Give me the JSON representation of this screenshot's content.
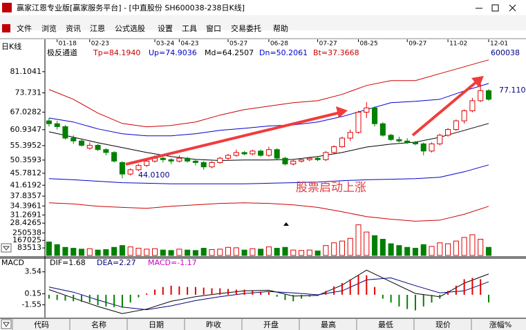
{
  "window": {
    "title": "赢家江恩专业版[赢家服务平台] - [中直股份  SH600038-238日K线]",
    "menu": [
      "文件",
      "浏览",
      "资讯",
      "江恩",
      "公式选股",
      "设置",
      "工具",
      "窗口",
      "交易委托",
      "帮助"
    ]
  },
  "chart_panel": {
    "period_label": "日K线",
    "indicator_name": "极反通道",
    "code": "600038",
    "annotation": "股票启动上涨"
  },
  "chart_data": [
    {
      "type": "candlestick",
      "up_color": "#e00000",
      "down_color": "#008000",
      "xlim": [
        -0.5,
        58.5
      ],
      "xticks": [
        {
          "value": 1,
          "label": "01-18"
        },
        {
          "value": 5,
          "label": "02-23"
        },
        {
          "value": 13,
          "label": "03-24"
        },
        {
          "value": 16,
          "label": "04-23"
        },
        {
          "value": 22,
          "label": "05-27"
        },
        {
          "value": 27,
          "label": "06-28"
        },
        {
          "value": 33,
          "label": "07-27"
        },
        {
          "value": 38,
          "label": "08-25"
        },
        {
          "value": 44,
          "label": "09-27"
        },
        {
          "value": 49,
          "label": "11-02"
        },
        {
          "value": 54,
          "label": "12-01"
        }
      ],
      "ylim": [
        28.0,
        89.7
      ],
      "yticks": [
        28.4265,
        31.2691,
        34.3961,
        37.8357,
        41.6192,
        45.7812,
        50.3593,
        55.3952,
        60.9347,
        67.0282,
        73.731,
        81.1041
      ],
      "candles": [
        [
          64,
          65,
          62,
          63
        ],
        [
          63,
          64,
          61,
          62
        ],
        [
          62,
          62.5,
          57.5,
          58
        ],
        [
          58,
          59,
          56,
          57
        ],
        [
          57,
          57.5,
          55,
          55.5
        ],
        [
          54.5,
          56.5,
          54,
          55.5
        ],
        [
          55.5,
          56,
          53.5,
          54
        ],
        [
          54,
          54.5,
          52,
          53
        ],
        [
          53,
          53.5,
          49.5,
          50
        ],
        [
          49.5,
          50,
          44.01,
          45.5
        ],
        [
          45.5,
          47.5,
          45,
          47
        ],
        [
          47,
          49,
          46.5,
          48.5
        ],
        [
          48.5,
          50.5,
          48,
          50
        ],
        [
          50,
          52,
          49.5,
          51
        ],
        [
          51,
          51.5,
          49.5,
          50.5
        ],
        [
          50.5,
          51,
          49,
          50
        ],
        [
          50,
          52,
          49.5,
          51
        ],
        [
          51,
          51.5,
          49.5,
          50
        ],
        [
          50,
          50.5,
          48.5,
          49.5
        ],
        [
          49.5,
          50,
          47,
          48
        ],
        [
          48,
          50,
          47.5,
          49.5
        ],
        [
          49.5,
          51.5,
          49,
          51
        ],
        [
          51,
          52.5,
          50.5,
          52
        ],
        [
          52,
          54,
          51.5,
          53
        ],
        [
          53,
          53.5,
          52,
          52.5
        ],
        [
          52.5,
          54,
          52,
          53.5
        ],
        [
          53.5,
          54,
          51.5,
          52
        ],
        [
          52,
          55,
          51.5,
          54
        ],
        [
          54,
          54.5,
          50.5,
          51
        ],
        [
          51,
          51.5,
          48.5,
          49
        ],
        [
          49,
          50.5,
          48.5,
          50
        ],
        [
          50,
          51,
          49.5,
          50.5
        ],
        [
          50.5,
          51.5,
          50,
          51
        ],
        [
          51,
          51.5,
          50,
          50.5
        ],
        [
          50.5,
          53.5,
          50,
          53
        ],
        [
          53,
          55.5,
          52.5,
          55
        ],
        [
          55,
          58.5,
          54.5,
          58
        ],
        [
          58,
          61,
          57,
          60
        ],
        [
          60,
          67.5,
          59.5,
          67
        ],
        [
          67,
          70.5,
          65,
          68.5
        ],
        [
          68.5,
          69,
          62,
          63
        ],
        [
          63,
          63.5,
          58.5,
          59
        ],
        [
          59,
          59.5,
          57,
          57.5
        ],
        [
          57.5,
          58.5,
          56.5,
          57
        ],
        [
          57,
          58,
          56,
          56.5
        ],
        [
          56.5,
          57,
          55.5,
          56
        ],
        [
          56,
          56.5,
          52,
          53.5
        ],
        [
          53.5,
          56.5,
          53,
          56
        ],
        [
          56,
          59.5,
          55.5,
          59
        ],
        [
          59,
          61.5,
          58.5,
          61
        ],
        [
          61,
          64.5,
          60.5,
          64
        ],
        [
          64,
          68,
          63,
          67.5
        ],
        [
          67.5,
          72,
          67,
          71
        ],
        [
          71,
          77.11,
          70.5,
          74.5
        ],
        [
          74.5,
          75,
          71,
          71.5
        ]
      ],
      "series": [
        {
          "name": "Tp=84.1940",
          "color": "#cc0000",
          "x": [
            0,
            3,
            6,
            9,
            12,
            15,
            18,
            21,
            24,
            27,
            30,
            33,
            36,
            39,
            42,
            45,
            48,
            51,
            54
          ],
          "values": [
            74.9,
            71.5,
            66.7,
            63.1,
            61.9,
            62.4,
            63.6,
            66.0,
            67.9,
            69.1,
            70.3,
            71.0,
            73.2,
            76.3,
            78.0,
            78.0,
            80.4,
            82.8,
            85.2
          ]
        },
        {
          "name": "Up=74.9036",
          "color": "#0000cc",
          "x": [
            0,
            3,
            6,
            9,
            12,
            15,
            18,
            21,
            24,
            27,
            30,
            33,
            36,
            39,
            42,
            45,
            48,
            51,
            54
          ],
          "values": [
            65.0,
            63.6,
            61.2,
            59.5,
            58.8,
            58.8,
            59.5,
            60.7,
            61.4,
            62.2,
            62.6,
            63.6,
            65.5,
            67.9,
            70.3,
            70.8,
            71.5,
            74.4,
            77.0
          ]
        },
        {
          "name": "Md=64.2507",
          "color": "#000000",
          "x": [
            0,
            3,
            6,
            9,
            12,
            15,
            18,
            21,
            24,
            27,
            30,
            33,
            36,
            39,
            42,
            45,
            48,
            51,
            54
          ],
          "values": [
            60.2,
            58.3,
            56.4,
            54.7,
            53.0,
            51.6,
            50.6,
            50.2,
            50.4,
            50.4,
            50.6,
            51.6,
            53.0,
            54.9,
            55.9,
            56.6,
            58.3,
            60.7,
            63.1
          ]
        },
        {
          "name": "Dn=50.2061",
          "color": "#0000cc",
          "x": [
            0,
            3,
            6,
            9,
            12,
            15,
            18,
            21,
            24,
            27,
            30,
            33,
            36,
            39,
            42,
            45,
            48,
            51,
            54
          ],
          "values": [
            43.9,
            43.5,
            43.0,
            42.5,
            42.3,
            42.1,
            42.1,
            42.1,
            42.1,
            42.3,
            42.5,
            42.7,
            43.2,
            43.5,
            43.7,
            43.9,
            44.4,
            46.3,
            48.7
          ]
        },
        {
          "name": "Bt=37.3668",
          "color": "#cc0000",
          "x": [
            0,
            3,
            6,
            9,
            12,
            15,
            18,
            21,
            24,
            27,
            30,
            33,
            36,
            39,
            42,
            45,
            48,
            51,
            54
          ],
          "values": [
            35.5,
            35.1,
            34.3,
            33.9,
            33.6,
            34.3,
            34.8,
            35.3,
            35.5,
            35.3,
            34.8,
            33.9,
            32.4,
            30.7,
            29.8,
            29.1,
            29.5,
            31.5,
            34.3
          ]
        }
      ],
      "annotations": [
        {
          "text": "44.0100"
        },
        {
          "text": "77.110"
        }
      ]
    },
    {
      "type": "bar",
      "ylim": [
        0,
        345000
      ],
      "yticks": [
        83513,
        167025,
        250538
      ],
      "values": [
        150000,
        120000,
        90000,
        80000,
        70000,
        75000,
        60000,
        65000,
        90000,
        110000,
        95000,
        80000,
        70000,
        75000,
        60000,
        55000,
        70000,
        60000,
        55000,
        80000,
        65000,
        70000,
        90000,
        85000,
        60000,
        75000,
        70000,
        95000,
        80000,
        90000,
        60000,
        55000,
        60000,
        50000,
        110000,
        140000,
        160000,
        190000,
        340000,
        260000,
        220000,
        180000,
        130000,
        110000,
        90000,
        80000,
        120000,
        100000,
        140000,
        130000,
        160000,
        200000,
        230000,
        180000,
        90000
      ]
    },
    {
      "type": "line",
      "title": "MACD",
      "ylim": [
        -3.3,
        4.36
      ],
      "yticks": [
        -1.55,
        0.15,
        3.54
      ],
      "series": [
        {
          "name": "DIF=1.68",
          "color": "#000000",
          "x": [
            0,
            3,
            6,
            9,
            12,
            15,
            18,
            21,
            24,
            27,
            30,
            33,
            36,
            39,
            42,
            45,
            48,
            51,
            54
          ],
          "values": [
            0.8,
            -0.5,
            -1.8,
            -2.9,
            -2.2,
            -1.0,
            -0.3,
            0.2,
            0.6,
            0.7,
            -0.2,
            -0.1,
            1.5,
            3.8,
            2.0,
            0.2,
            -0.3,
            1.8,
            3.2
          ]
        },
        {
          "name": "DEA=2.27",
          "color": "#000080",
          "x": [
            0,
            3,
            6,
            9,
            12,
            15,
            18,
            21,
            24,
            27,
            30,
            33,
            36,
            39,
            42,
            45,
            48,
            51,
            54
          ],
          "values": [
            1.2,
            0.4,
            -0.8,
            -1.9,
            -2.3,
            -1.7,
            -0.9,
            -0.3,
            0.2,
            0.5,
            0.3,
            0.0,
            0.6,
            2.3,
            2.6,
            1.4,
            0.3,
            0.6,
            2.0
          ]
        },
        {
          "name": "MACD=-1.17",
          "color": "#cc00cc",
          "type": "bar",
          "values": [
            -0.6,
            -0.8,
            -0.9,
            -1.0,
            -1.1,
            -1.2,
            -1.6,
            -1.8,
            -1.9,
            -2.0,
            -1.2,
            -0.4,
            0.2,
            0.8,
            1.2,
            1.4,
            1.3,
            1.2,
            1.2,
            1.1,
            1.0,
            1.0,
            0.9,
            0.8,
            0.8,
            0.6,
            0.5,
            0.4,
            -0.3,
            -0.8,
            -1.0,
            -0.6,
            -0.3,
            -0.2,
            0.6,
            1.3,
            1.8,
            2.4,
            3.0,
            3.0,
            1.2,
            -0.6,
            -1.2,
            -1.8,
            -2.2,
            -2.4,
            -1.8,
            -1.2,
            -0.6,
            0.6,
            1.4,
            2.4,
            2.6,
            2.4,
            -1.17
          ]
        }
      ]
    }
  ],
  "table_header": [
    "代码",
    "名称",
    "日期",
    "昨收",
    "开盘",
    "最高",
    "最低",
    "现价",
    "涨幅%"
  ]
}
